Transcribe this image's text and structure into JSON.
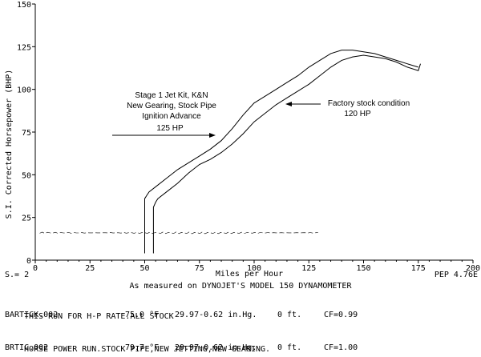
{
  "chart_data": {
    "type": "line",
    "ylabel": "S.I. Corrected Horsepower (BHP)",
    "xlabel": "Miles per Hour",
    "xlim": [
      0,
      200
    ],
    "ylim": [
      0,
      150
    ],
    "x_ticks": [
      0,
      25,
      50,
      75,
      100,
      125,
      150,
      175,
      200
    ],
    "y_ticks": [
      0,
      25,
      50,
      75,
      100,
      125,
      150
    ],
    "x_tick_labels": [
      "0",
      "25",
      "50",
      "75",
      "100",
      "125",
      "150",
      "175",
      "200"
    ],
    "y_tick_labels": [
      "0",
      "25",
      "50",
      "75",
      "100",
      "125",
      "150"
    ],
    "grid": false,
    "series": [
      {
        "x": [
          50,
          51,
          52,
          55,
          60,
          65,
          70,
          75,
          80,
          85,
          90,
          95,
          100,
          105,
          110,
          115,
          120,
          125,
          130,
          135,
          140,
          145,
          150,
          155,
          160,
          165,
          170,
          175
        ],
        "y": [
          36,
          38,
          40,
          43,
          48,
          53,
          57,
          61,
          65,
          70,
          77,
          85,
          92,
          96,
          100,
          104,
          108,
          113,
          117,
          121,
          123,
          123,
          122,
          121,
          119,
          117,
          115,
          113
        ],
        "color": "#000000"
      },
      {
        "x": [
          54,
          55,
          56,
          60,
          65,
          70,
          75,
          80,
          85,
          90,
          95,
          100,
          105,
          110,
          115,
          120,
          125,
          130,
          135,
          140,
          145,
          150,
          155,
          160,
          165,
          170,
          175,
          176
        ],
        "y": [
          31,
          34,
          36,
          40,
          45,
          51,
          56,
          59,
          63,
          68,
          74,
          81,
          86,
          91,
          95,
          99,
          103,
          108,
          113,
          117,
          119,
          120,
          119,
          118,
          116,
          113,
          111,
          115
        ],
        "color": "#000000"
      }
    ],
    "baseline_noise_y": 16,
    "annotations": [
      {
        "lines": [
          "Stage 1 Jet Kit, K&N",
          "New Gearing, Stock Pipe",
          "Ignition Advance",
          "125 HP"
        ]
      },
      {
        "lines": [
          "Factory stock condition",
          "120 HP"
        ]
      }
    ]
  },
  "labels": {
    "y_axis_title": "S.I. Corrected Horsepower (BHP)",
    "x_axis_title": "Miles per Hour",
    "smoothing": "S.= 2",
    "version": "PEP 4.76E",
    "subtitle": "As measured on DYNOJET'S MODEL 150 DYNAMOMETER"
  },
  "runs": [
    {
      "file": "BARTICK.002",
      "temp": "75.0 °F",
      "pressure": "29.97-0.62 in.Hg.",
      "altitude": "0 ft.",
      "cf": "CF=0.99",
      "note": "THIS RUN FOR H-P RATE.ALL STOCK"
    },
    {
      "file": "BRTIC.002",
      "temp": "79.7 °F",
      "pressure": "29.97-0.62 in.Hg.",
      "altitude": "0 ft.",
      "cf": "CF=1.00",
      "note": "HORSE POWER RUN.STOCK PIPE,NEW JETTING,NEW GEARING."
    }
  ]
}
